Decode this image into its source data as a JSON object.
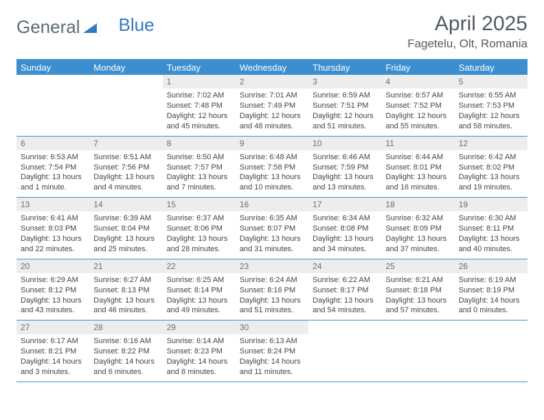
{
  "brand": {
    "part1": "General",
    "part2": "Blue"
  },
  "title": "April 2025",
  "location": "Fagetelu, Olt, Romania",
  "colors": {
    "header_bg": "#3b8fd0",
    "header_text": "#ffffff",
    "daynum_bg": "#ededed",
    "daynum_text": "#6a6f74",
    "rule": "#3b8fd0",
    "body_text": "#444444",
    "title_text": "#525a61"
  },
  "day_headers": [
    "Sunday",
    "Monday",
    "Tuesday",
    "Wednesday",
    "Thursday",
    "Friday",
    "Saturday"
  ],
  "weeks": [
    [
      {
        "n": "",
        "sr": "",
        "ss": "",
        "dl": ""
      },
      {
        "n": "",
        "sr": "",
        "ss": "",
        "dl": ""
      },
      {
        "n": "1",
        "sr": "Sunrise: 7:02 AM",
        "ss": "Sunset: 7:48 PM",
        "dl": "Daylight: 12 hours and 45 minutes."
      },
      {
        "n": "2",
        "sr": "Sunrise: 7:01 AM",
        "ss": "Sunset: 7:49 PM",
        "dl": "Daylight: 12 hours and 48 minutes."
      },
      {
        "n": "3",
        "sr": "Sunrise: 6:59 AM",
        "ss": "Sunset: 7:51 PM",
        "dl": "Daylight: 12 hours and 51 minutes."
      },
      {
        "n": "4",
        "sr": "Sunrise: 6:57 AM",
        "ss": "Sunset: 7:52 PM",
        "dl": "Daylight: 12 hours and 55 minutes."
      },
      {
        "n": "5",
        "sr": "Sunrise: 6:55 AM",
        "ss": "Sunset: 7:53 PM",
        "dl": "Daylight: 12 hours and 58 minutes."
      }
    ],
    [
      {
        "n": "6",
        "sr": "Sunrise: 6:53 AM",
        "ss": "Sunset: 7:54 PM",
        "dl": "Daylight: 13 hours and 1 minute."
      },
      {
        "n": "7",
        "sr": "Sunrise: 6:51 AM",
        "ss": "Sunset: 7:56 PM",
        "dl": "Daylight: 13 hours and 4 minutes."
      },
      {
        "n": "8",
        "sr": "Sunrise: 6:50 AM",
        "ss": "Sunset: 7:57 PM",
        "dl": "Daylight: 13 hours and 7 minutes."
      },
      {
        "n": "9",
        "sr": "Sunrise: 6:48 AM",
        "ss": "Sunset: 7:58 PM",
        "dl": "Daylight: 13 hours and 10 minutes."
      },
      {
        "n": "10",
        "sr": "Sunrise: 6:46 AM",
        "ss": "Sunset: 7:59 PM",
        "dl": "Daylight: 13 hours and 13 minutes."
      },
      {
        "n": "11",
        "sr": "Sunrise: 6:44 AM",
        "ss": "Sunset: 8:01 PM",
        "dl": "Daylight: 13 hours and 16 minutes."
      },
      {
        "n": "12",
        "sr": "Sunrise: 6:42 AM",
        "ss": "Sunset: 8:02 PM",
        "dl": "Daylight: 13 hours and 19 minutes."
      }
    ],
    [
      {
        "n": "13",
        "sr": "Sunrise: 6:41 AM",
        "ss": "Sunset: 8:03 PM",
        "dl": "Daylight: 13 hours and 22 minutes."
      },
      {
        "n": "14",
        "sr": "Sunrise: 6:39 AM",
        "ss": "Sunset: 8:04 PM",
        "dl": "Daylight: 13 hours and 25 minutes."
      },
      {
        "n": "15",
        "sr": "Sunrise: 6:37 AM",
        "ss": "Sunset: 8:06 PM",
        "dl": "Daylight: 13 hours and 28 minutes."
      },
      {
        "n": "16",
        "sr": "Sunrise: 6:35 AM",
        "ss": "Sunset: 8:07 PM",
        "dl": "Daylight: 13 hours and 31 minutes."
      },
      {
        "n": "17",
        "sr": "Sunrise: 6:34 AM",
        "ss": "Sunset: 8:08 PM",
        "dl": "Daylight: 13 hours and 34 minutes."
      },
      {
        "n": "18",
        "sr": "Sunrise: 6:32 AM",
        "ss": "Sunset: 8:09 PM",
        "dl": "Daylight: 13 hours and 37 minutes."
      },
      {
        "n": "19",
        "sr": "Sunrise: 6:30 AM",
        "ss": "Sunset: 8:11 PM",
        "dl": "Daylight: 13 hours and 40 minutes."
      }
    ],
    [
      {
        "n": "20",
        "sr": "Sunrise: 6:29 AM",
        "ss": "Sunset: 8:12 PM",
        "dl": "Daylight: 13 hours and 43 minutes."
      },
      {
        "n": "21",
        "sr": "Sunrise: 6:27 AM",
        "ss": "Sunset: 8:13 PM",
        "dl": "Daylight: 13 hours and 46 minutes."
      },
      {
        "n": "22",
        "sr": "Sunrise: 6:25 AM",
        "ss": "Sunset: 8:14 PM",
        "dl": "Daylight: 13 hours and 49 minutes."
      },
      {
        "n": "23",
        "sr": "Sunrise: 6:24 AM",
        "ss": "Sunset: 8:16 PM",
        "dl": "Daylight: 13 hours and 51 minutes."
      },
      {
        "n": "24",
        "sr": "Sunrise: 6:22 AM",
        "ss": "Sunset: 8:17 PM",
        "dl": "Daylight: 13 hours and 54 minutes."
      },
      {
        "n": "25",
        "sr": "Sunrise: 6:21 AM",
        "ss": "Sunset: 8:18 PM",
        "dl": "Daylight: 13 hours and 57 minutes."
      },
      {
        "n": "26",
        "sr": "Sunrise: 6:19 AM",
        "ss": "Sunset: 8:19 PM",
        "dl": "Daylight: 14 hours and 0 minutes."
      }
    ],
    [
      {
        "n": "27",
        "sr": "Sunrise: 6:17 AM",
        "ss": "Sunset: 8:21 PM",
        "dl": "Daylight: 14 hours and 3 minutes."
      },
      {
        "n": "28",
        "sr": "Sunrise: 6:16 AM",
        "ss": "Sunset: 8:22 PM",
        "dl": "Daylight: 14 hours and 6 minutes."
      },
      {
        "n": "29",
        "sr": "Sunrise: 6:14 AM",
        "ss": "Sunset: 8:23 PM",
        "dl": "Daylight: 14 hours and 8 minutes."
      },
      {
        "n": "30",
        "sr": "Sunrise: 6:13 AM",
        "ss": "Sunset: 8:24 PM",
        "dl": "Daylight: 14 hours and 11 minutes."
      },
      {
        "n": "",
        "sr": "",
        "ss": "",
        "dl": ""
      },
      {
        "n": "",
        "sr": "",
        "ss": "",
        "dl": ""
      },
      {
        "n": "",
        "sr": "",
        "ss": "",
        "dl": ""
      }
    ]
  ]
}
